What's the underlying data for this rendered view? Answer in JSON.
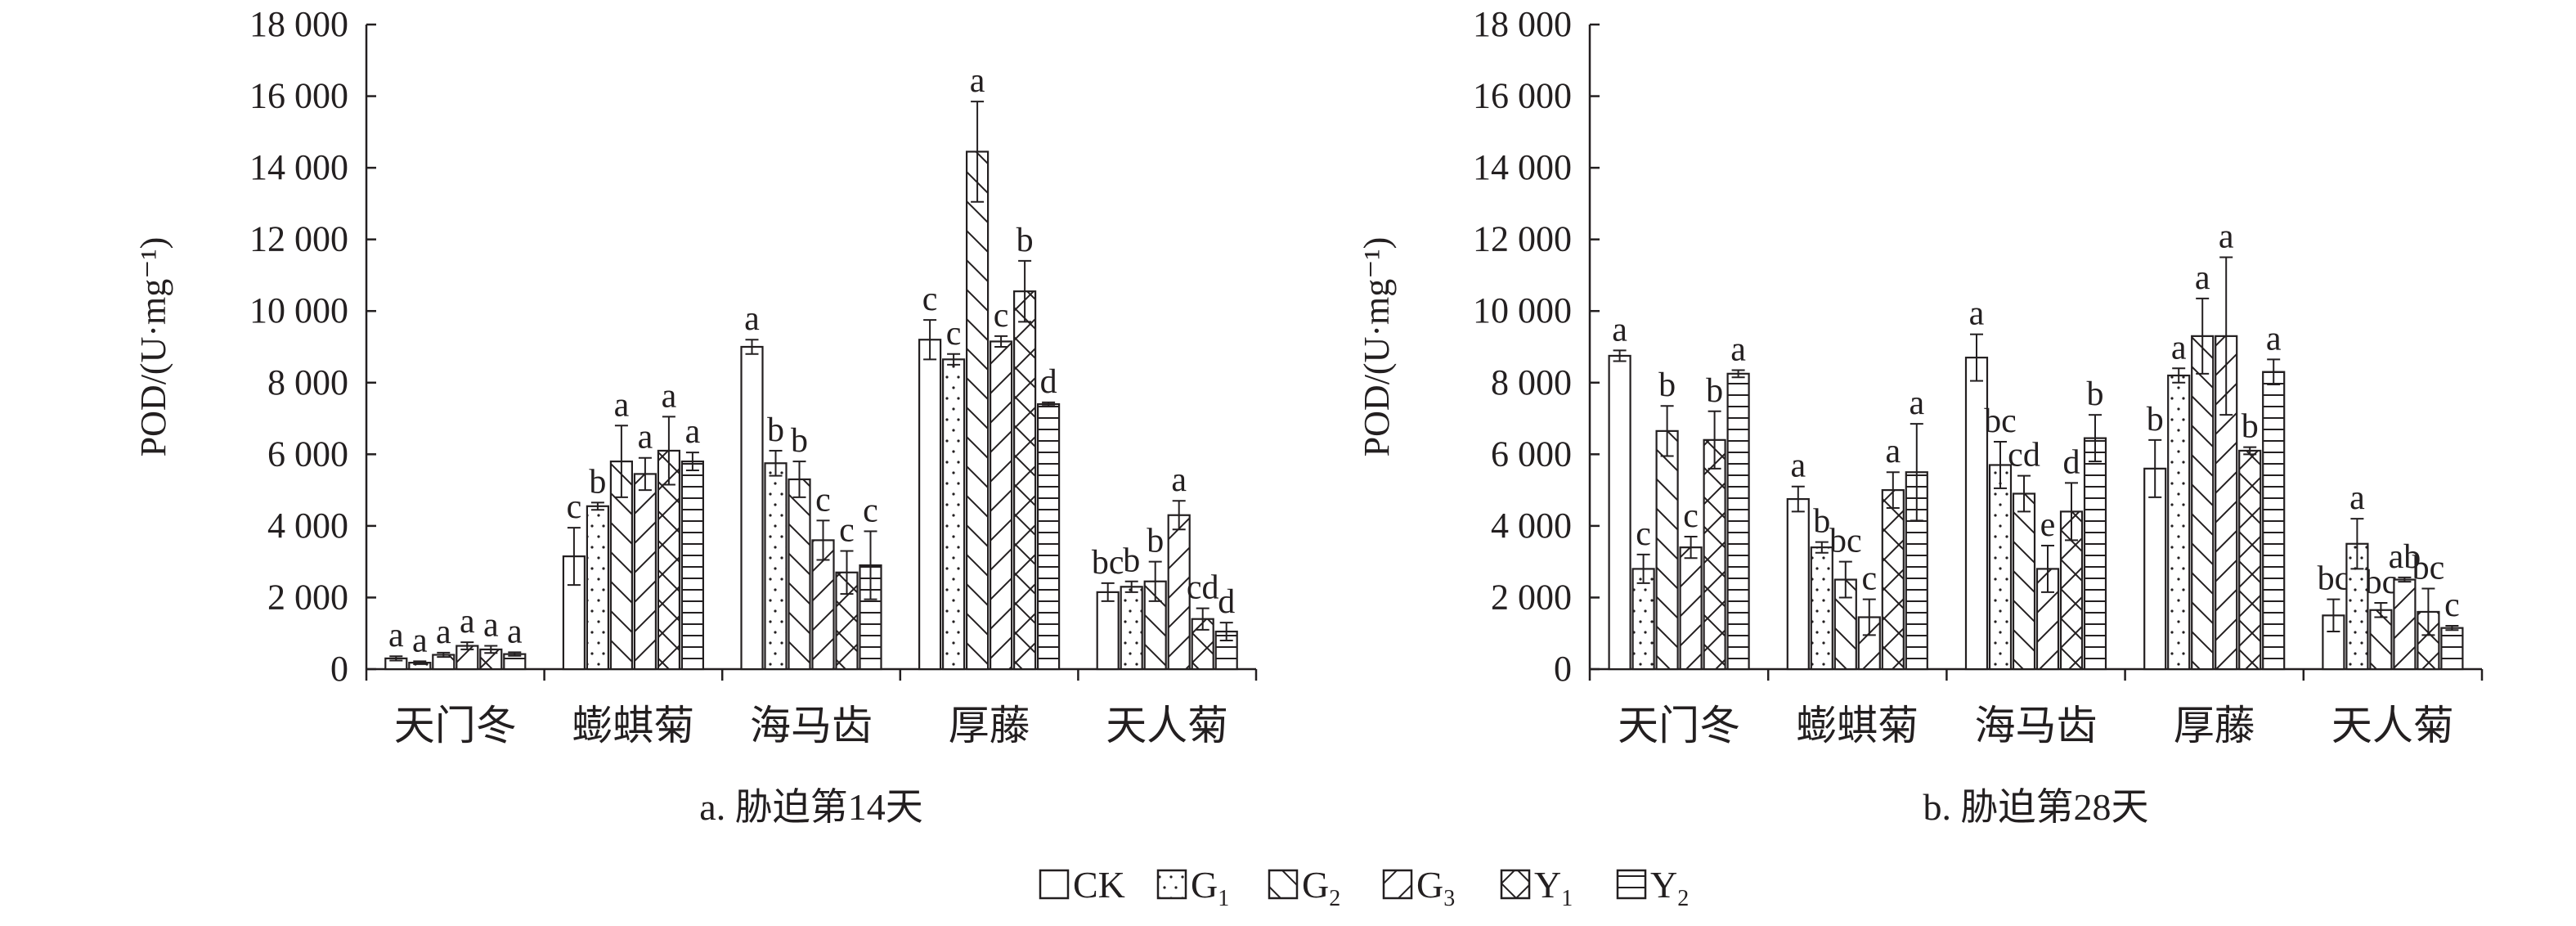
{
  "chart_data": [
    {
      "type": "bar",
      "title": "a. 胁迫第14天",
      "ylabel": "POD/(U·mg⁻¹)",
      "ylim": [
        0,
        18000
      ],
      "yticks": [
        0,
        2000,
        4000,
        6000,
        8000,
        10000,
        12000,
        14000,
        16000,
        18000
      ],
      "ytick_labels": [
        "0",
        "2 000",
        "4 000",
        "6 000",
        "8 000",
        "10 000",
        "12 000",
        "14 000",
        "16 000",
        "18 000"
      ],
      "categories": [
        "天门冬",
        "蟛蜞菊",
        "海马齿",
        "厚藤",
        "天人菊"
      ],
      "series": [
        {
          "name": "CK",
          "values": [
            300,
            3150,
            9000,
            9200,
            2150
          ],
          "errors": [
            60,
            800,
            200,
            550,
            250
          ],
          "letters": [
            "a",
            "c",
            "a",
            "c",
            "bc"
          ]
        },
        {
          "name": "G1",
          "values": [
            180,
            4550,
            5750,
            8650,
            2300
          ],
          "errors": [
            40,
            100,
            350,
            150,
            150
          ],
          "letters": [
            "a",
            "b",
            "b",
            "c",
            "b"
          ]
        },
        {
          "name": "G2",
          "values": [
            400,
            5800,
            5300,
            14450,
            2450
          ],
          "errors": [
            60,
            1000,
            500,
            1400,
            550
          ],
          "letters": [
            "a",
            "a",
            "b",
            "a",
            "b"
          ]
        },
        {
          "name": "G3",
          "values": [
            650,
            5450,
            3600,
            9150,
            4300
          ],
          "errors": [
            100,
            450,
            550,
            150,
            400
          ],
          "letters": [
            "a",
            "a",
            "c",
            "c",
            "a"
          ]
        },
        {
          "name": "Y1",
          "values": [
            550,
            6100,
            2700,
            10550,
            1400
          ],
          "errors": [
            100,
            950,
            600,
            850,
            300
          ],
          "letters": [
            "a",
            "a",
            "c",
            "b",
            "cd"
          ]
        },
        {
          "name": "Y2",
          "values": [
            420,
            5800,
            2900,
            7400,
            1050
          ],
          "errors": [
            50,
            250,
            950,
            50,
            250
          ],
          "letters": [
            "a",
            "a",
            "c",
            "d",
            "d"
          ]
        }
      ]
    },
    {
      "type": "bar",
      "title": "b. 胁迫第28天",
      "ylabel": "POD/(U·mg⁻¹)",
      "ylim": [
        0,
        18000
      ],
      "yticks": [
        0,
        2000,
        4000,
        6000,
        8000,
        10000,
        12000,
        14000,
        16000,
        18000
      ],
      "ytick_labels": [
        "0",
        "2 000",
        "4 000",
        "6 000",
        "8 000",
        "10 000",
        "12 000",
        "14 000",
        "16 000",
        "18 000"
      ],
      "categories": [
        "天门冬",
        "蟛蜞菊",
        "海马齿",
        "厚藤",
        "天人菊"
      ],
      "series": [
        {
          "name": "CK",
          "values": [
            8750,
            4750,
            8700,
            5600,
            1500
          ],
          "errors": [
            150,
            350,
            650,
            800,
            450
          ],
          "letters": [
            "a",
            "a",
            "a",
            "b",
            "bc"
          ]
        },
        {
          "name": "G1",
          "values": [
            2800,
            3400,
            5700,
            8200,
            3500
          ],
          "errors": [
            400,
            150,
            650,
            200,
            700
          ],
          "letters": [
            "c",
            "b",
            "bc",
            "a",
            "a"
          ]
        },
        {
          "name": "G2",
          "values": [
            6650,
            2500,
            4900,
            9300,
            1650
          ],
          "errors": [
            700,
            500,
            500,
            1050,
            200
          ],
          "letters": [
            "b",
            "bc",
            "cd",
            "a",
            "bc"
          ]
        },
        {
          "name": "G3",
          "values": [
            3400,
            1450,
            2800,
            9300,
            2500
          ],
          "errors": [
            300,
            500,
            650,
            2200,
            60
          ],
          "letters": [
            "c",
            "c",
            "e",
            "a",
            "ab"
          ]
        },
        {
          "name": "Y1",
          "values": [
            6400,
            5000,
            4400,
            6100,
            1600
          ],
          "errors": [
            800,
            500,
            800,
            100,
            650
          ],
          "letters": [
            "b",
            "a",
            "d",
            "b",
            "bc"
          ]
        },
        {
          "name": "Y2",
          "values": [
            8250,
            5500,
            6450,
            8300,
            1150
          ],
          "errors": [
            100,
            1350,
            650,
            350,
            60
          ],
          "letters": [
            "a",
            "a",
            "b",
            "a",
            "c"
          ]
        }
      ]
    }
  ],
  "legend": {
    "placement": "bottom-center",
    "items": [
      {
        "label": "CK",
        "sub": "",
        "pattern": "none"
      },
      {
        "label": "G",
        "sub": "1",
        "pattern": "dots"
      },
      {
        "label": "G",
        "sub": "2",
        "pattern": "backslash"
      },
      {
        "label": "G",
        "sub": "3",
        "pattern": "slash"
      },
      {
        "label": "Y",
        "sub": "1",
        "pattern": "cross"
      },
      {
        "label": "Y",
        "sub": "2",
        "pattern": "horizontal"
      }
    ]
  },
  "colors": {
    "ink": "#231f20",
    "bar_fill": "#ffffff"
  }
}
